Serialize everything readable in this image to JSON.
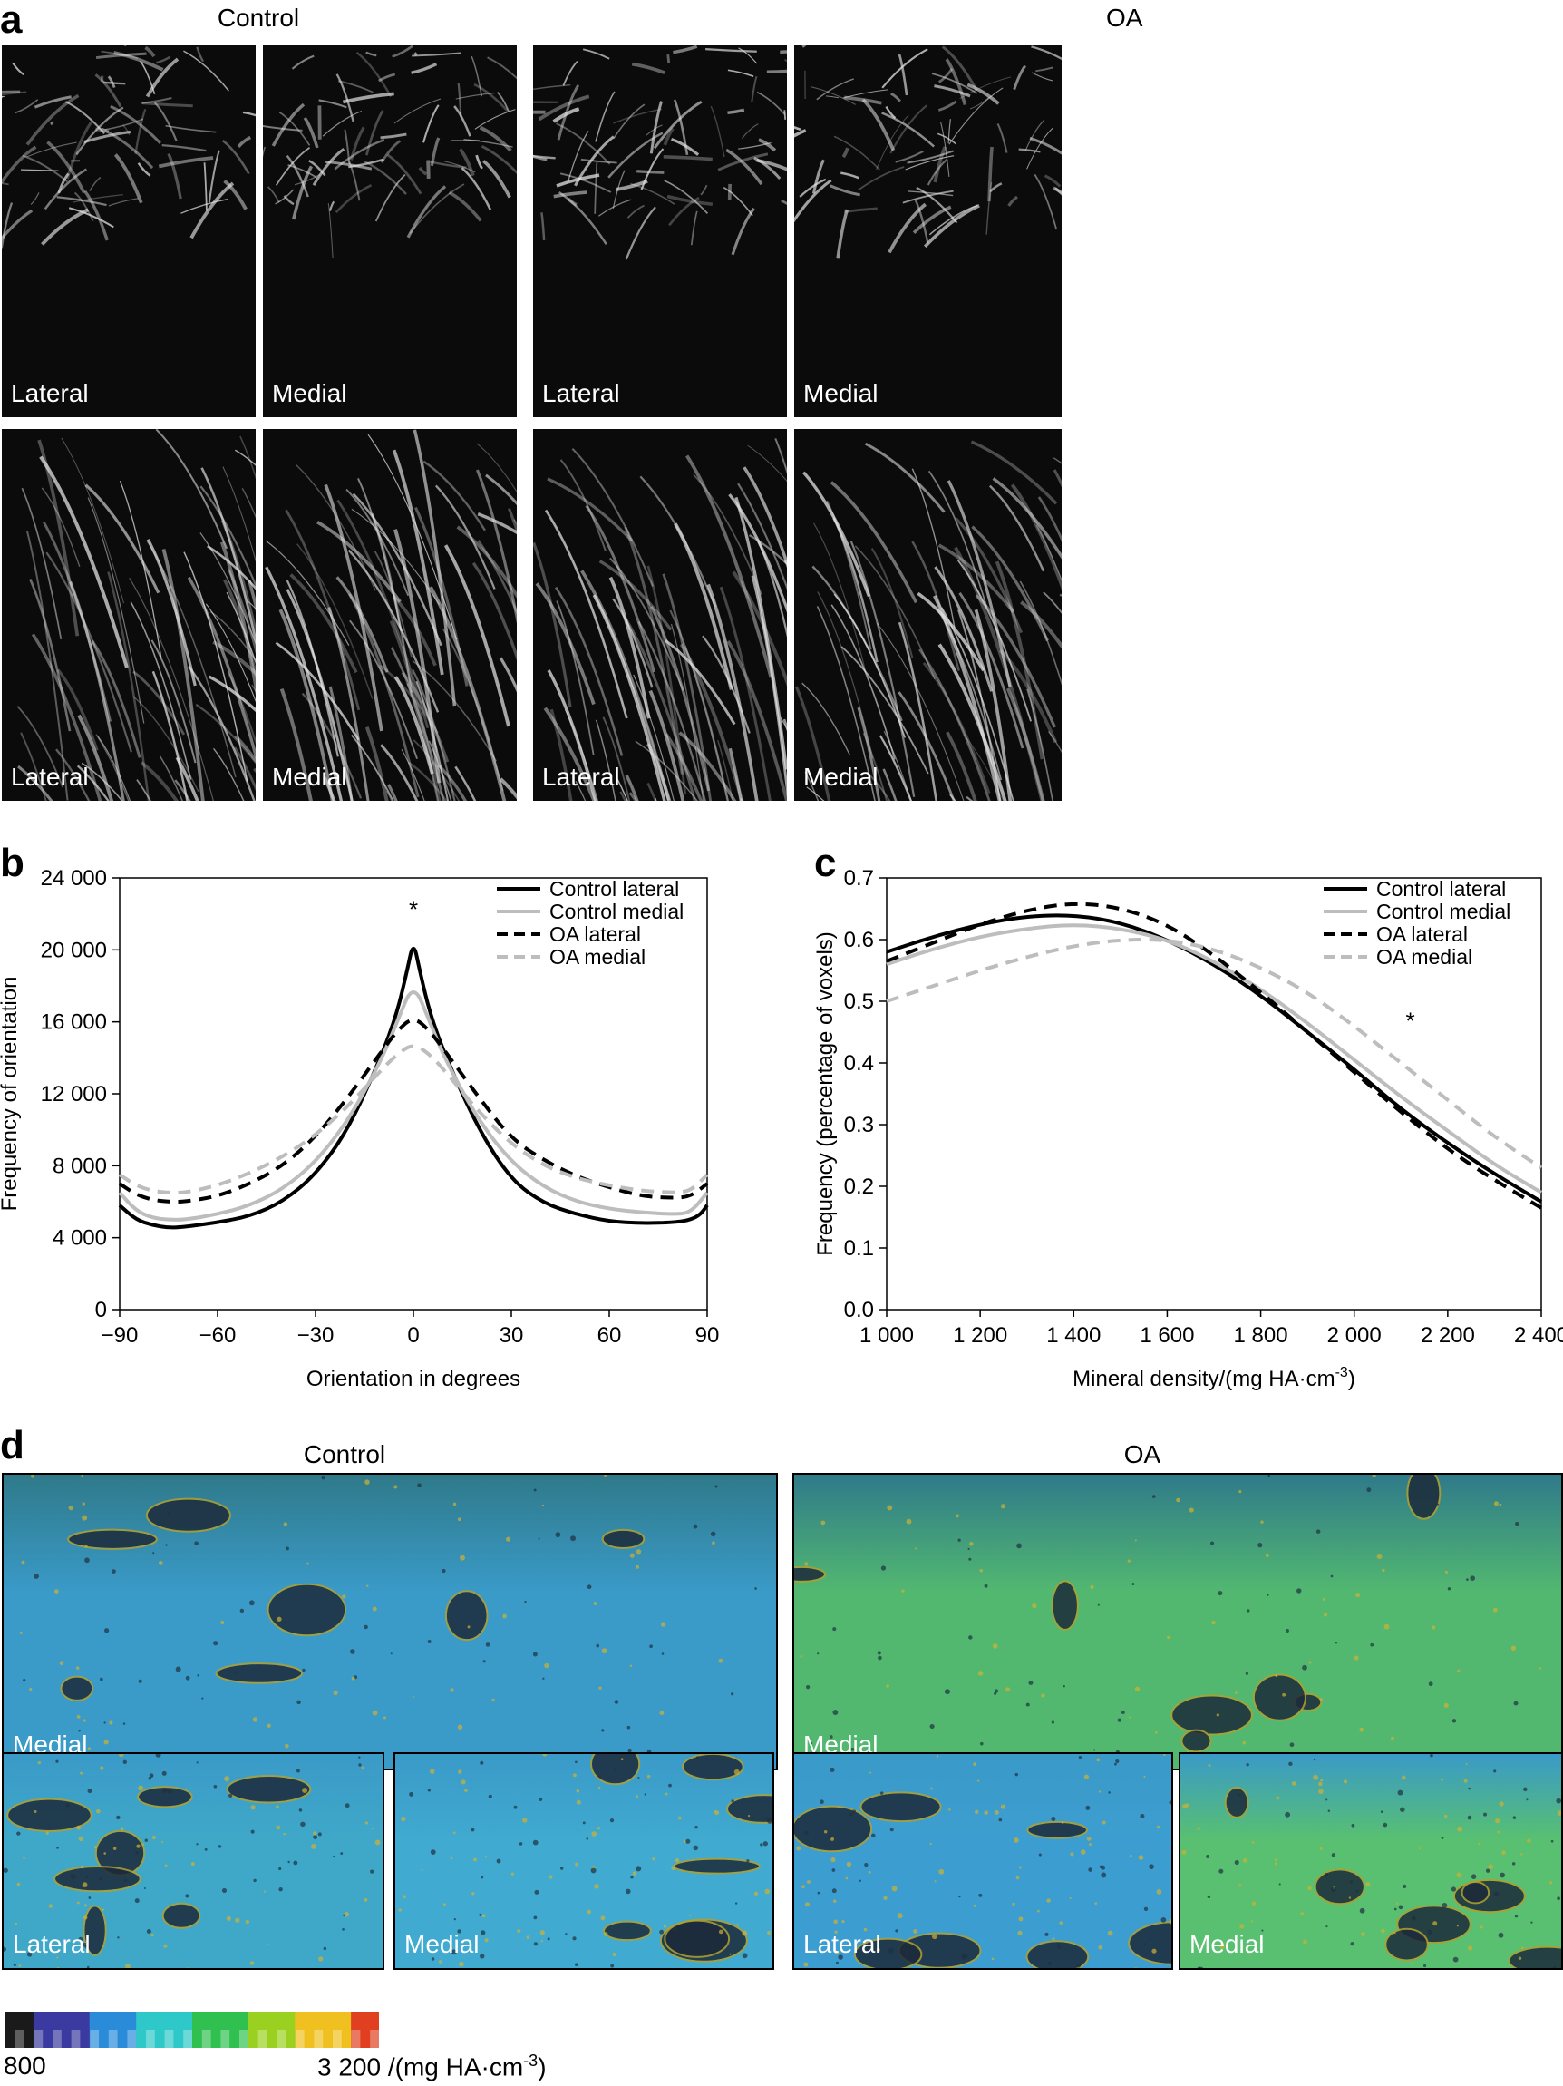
{
  "panel_a": {
    "letter": "a",
    "control_title": "Control",
    "oa_title": "OA",
    "labels": [
      "Lateral",
      "Medial",
      "Lateral",
      "Medial",
      "Lateral",
      "Medial",
      "Lateral",
      "Medial"
    ]
  },
  "panel_b": {
    "letter": "b",
    "chart_data": {
      "type": "line",
      "title": "",
      "xlabel": "Orientation in degrees",
      "ylabel": "Frequency of orientation",
      "xlim": [
        -90,
        90
      ],
      "ylim": [
        0,
        24000
      ],
      "xticks": [
        -90,
        -60,
        -30,
        0,
        30,
        60,
        90
      ],
      "xtick_labels": [
        "−90",
        "−60",
        "−30",
        "0",
        "30",
        "60",
        "90"
      ],
      "yticks": [
        0,
        4000,
        8000,
        12000,
        16000,
        20000,
        24000
      ],
      "ytick_labels": [
        "0",
        "4 000",
        "8 000",
        "12 000",
        "16 000",
        "20 000",
        "24 000"
      ],
      "legend_position": "top-right",
      "annotation": "*",
      "annotation_x": 0,
      "annotation_y": 21800,
      "series": [
        {
          "name": "Control lateral",
          "color": "#000000",
          "dash": "solid",
          "x": [
            -90,
            -85,
            -80,
            -75,
            -70,
            -60,
            -50,
            -40,
            -30,
            -20,
            -10,
            -5,
            -2,
            0,
            2,
            5,
            10,
            20,
            30,
            40,
            50,
            60,
            70,
            80,
            85,
            88,
            90
          ],
          "y": [
            5800,
            5000,
            4700,
            4550,
            4600,
            4850,
            5200,
            6000,
            7500,
            10000,
            14000,
            16500,
            18800,
            20500,
            18800,
            16500,
            14000,
            10000,
            7200,
            5900,
            5300,
            4900,
            4800,
            4850,
            5000,
            5300,
            5800
          ]
        },
        {
          "name": "Control medial",
          "color": "#bdbdbd",
          "dash": "solid",
          "x": [
            -90,
            -85,
            -80,
            -75,
            -70,
            -60,
            -50,
            -40,
            -30,
            -20,
            -10,
            -5,
            0,
            5,
            10,
            20,
            30,
            40,
            50,
            60,
            70,
            80,
            85,
            90
          ],
          "y": [
            6500,
            5500,
            5100,
            5000,
            5000,
            5300,
            5800,
            6700,
            8200,
            10500,
            13800,
            16000,
            18200,
            16000,
            13800,
            10500,
            8200,
            6800,
            6000,
            5600,
            5400,
            5300,
            5400,
            6500
          ]
        },
        {
          "name": "OA lateral",
          "color": "#000000",
          "dash": "dashed",
          "x": [
            -90,
            -85,
            -80,
            -75,
            -70,
            -60,
            -50,
            -40,
            -30,
            -20,
            -10,
            -5,
            0,
            5,
            10,
            20,
            30,
            40,
            50,
            60,
            70,
            80,
            85,
            90
          ],
          "y": [
            7000,
            6400,
            6100,
            6000,
            6000,
            6300,
            7000,
            8000,
            9600,
            11800,
            14300,
            15500,
            16300,
            15500,
            14300,
            11800,
            9500,
            8300,
            7400,
            6800,
            6300,
            6200,
            6300,
            7000
          ]
        },
        {
          "name": "OA medial",
          "color": "#bdbdbd",
          "dash": "dashed",
          "x": [
            -90,
            -85,
            -80,
            -75,
            -70,
            -60,
            -50,
            -40,
            -30,
            -20,
            -10,
            -5,
            0,
            5,
            10,
            20,
            30,
            40,
            50,
            60,
            70,
            80,
            85,
            90
          ],
          "y": [
            7500,
            6900,
            6600,
            6500,
            6500,
            6900,
            7600,
            8500,
            9700,
            11300,
            13300,
            14200,
            14800,
            14200,
            13200,
            11000,
            9200,
            8000,
            7300,
            6900,
            6600,
            6500,
            6600,
            7500
          ]
        }
      ]
    }
  },
  "panel_c": {
    "letter": "c",
    "chart_data": {
      "type": "line",
      "title": "",
      "xlabel": "Mineral density/(mg HA·cm",
      "xlabel_sup": "-3",
      "xlabel_end": ")",
      "ylabel": "Frequency (percentage of voxels)",
      "xlim": [
        1000,
        2400
      ],
      "ylim": [
        0,
        0.7
      ],
      "xticks": [
        1000,
        1200,
        1400,
        1600,
        1800,
        2000,
        2200,
        2400
      ],
      "xtick_labels": [
        "1 000",
        "1 200",
        "1 400",
        "1 600",
        "1 800",
        "2 000",
        "2 200",
        "2 400"
      ],
      "yticks": [
        0,
        0.1,
        0.2,
        0.3,
        0.4,
        0.5,
        0.6,
        0.7
      ],
      "ytick_labels": [
        "0.0",
        "0.1",
        "0.2",
        "0.3",
        "0.4",
        "0.5",
        "0.6",
        "0.7"
      ],
      "legend_position": "top-right",
      "annotation": "*",
      "annotation_x": 2120,
      "annotation_y": 0.455,
      "series": [
        {
          "name": "Control lateral",
          "color": "#000000",
          "dash": "solid",
          "x": [
            1000,
            1100,
            1200,
            1300,
            1400,
            1500,
            1600,
            1700,
            1800,
            1900,
            2000,
            2100,
            2200,
            2300,
            2400
          ],
          "y": [
            0.58,
            0.605,
            0.625,
            0.638,
            0.64,
            0.628,
            0.6,
            0.56,
            0.51,
            0.45,
            0.39,
            0.325,
            0.27,
            0.22,
            0.175
          ]
        },
        {
          "name": "Control medial",
          "color": "#bdbdbd",
          "dash": "solid",
          "x": [
            1000,
            1100,
            1200,
            1300,
            1400,
            1500,
            1600,
            1700,
            1800,
            1900,
            2000,
            2100,
            2200,
            2300,
            2400
          ],
          "y": [
            0.56,
            0.585,
            0.605,
            0.618,
            0.625,
            0.618,
            0.6,
            0.565,
            0.52,
            0.465,
            0.405,
            0.345,
            0.29,
            0.235,
            0.19
          ]
        },
        {
          "name": "OA lateral",
          "color": "#000000",
          "dash": "dashed",
          "x": [
            1000,
            1100,
            1200,
            1300,
            1400,
            1500,
            1600,
            1700,
            1800,
            1900,
            2000,
            2100,
            2200,
            2300,
            2400
          ],
          "y": [
            0.565,
            0.595,
            0.625,
            0.648,
            0.66,
            0.652,
            0.625,
            0.575,
            0.515,
            0.45,
            0.385,
            0.32,
            0.26,
            0.21,
            0.165
          ]
        },
        {
          "name": "OA medial",
          "color": "#bdbdbd",
          "dash": "dashed",
          "x": [
            1000,
            1100,
            1200,
            1300,
            1400,
            1500,
            1600,
            1700,
            1800,
            1900,
            2000,
            2100,
            2200,
            2300,
            2400
          ],
          "y": [
            0.5,
            0.525,
            0.55,
            0.572,
            0.59,
            0.6,
            0.6,
            0.585,
            0.555,
            0.515,
            0.46,
            0.4,
            0.34,
            0.28,
            0.23
          ]
        }
      ]
    }
  },
  "panel_d": {
    "letter": "d",
    "control_title": "Control",
    "oa_title": "OA",
    "labels": [
      "Medial",
      "Medial",
      "Lateral",
      "Medial",
      "Lateral",
      "Medial"
    ],
    "colorbar": {
      "min_label": "800",
      "max_label": "3 200 /(mg HA·cm",
      "max_label_sup": "-3",
      "max_label_end": ")",
      "colors": [
        "#1a1a1a",
        "#3a3aa0",
        "#2a8cd8",
        "#2fc8c8",
        "#30c050",
        "#9ad020",
        "#f0c020",
        "#e04020"
      ]
    }
  }
}
